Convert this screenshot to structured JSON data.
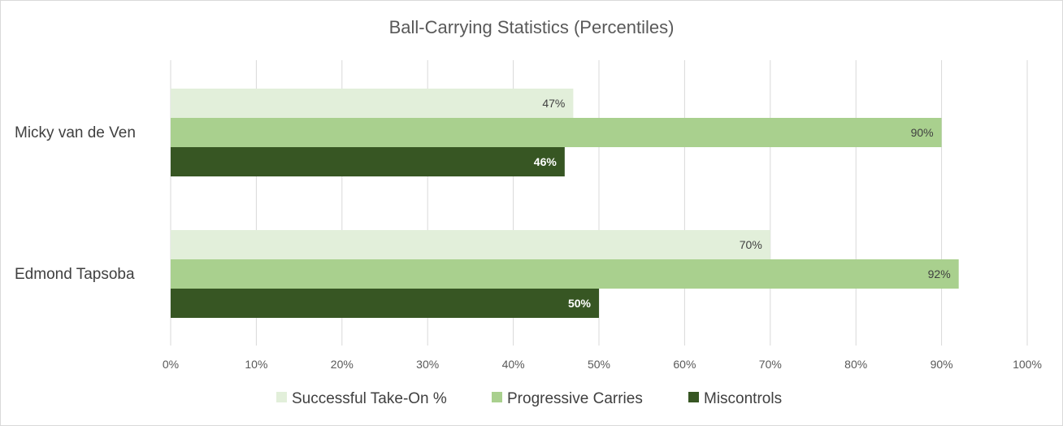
{
  "chart_data": {
    "type": "bar",
    "orientation": "horizontal",
    "title": "Ball-Carrying Statistics (Percentiles)",
    "categories": [
      "Micky van de Ven",
      "Edmond Tapsoba"
    ],
    "series": [
      {
        "name": "Successful Take-On %",
        "values": [
          47,
          70
        ],
        "color": "#e2efda",
        "label_color": "#404040",
        "label_bold": false
      },
      {
        "name": "Progressive Carries",
        "values": [
          90,
          92
        ],
        "color": "#a9d08e",
        "label_color": "#404040",
        "label_bold": false
      },
      {
        "name": "Miscontrols",
        "values": [
          46,
          50
        ],
        "color": "#375623",
        "label_color": "#ffffff",
        "label_bold": true
      }
    ],
    "data_labels": [
      [
        "47%",
        "70%"
      ],
      [
        "90%",
        "92%"
      ],
      [
        "46%",
        "50%"
      ]
    ],
    "xlim": [
      0,
      100
    ],
    "x_ticks": [
      0,
      10,
      20,
      30,
      40,
      50,
      60,
      70,
      80,
      90,
      100
    ],
    "x_tick_labels": [
      "0%",
      "10%",
      "20%",
      "30%",
      "40%",
      "50%",
      "60%",
      "70%",
      "80%",
      "90%",
      "100%"
    ],
    "grid": true,
    "legend_position": "bottom",
    "xlabel": "",
    "ylabel": ""
  }
}
